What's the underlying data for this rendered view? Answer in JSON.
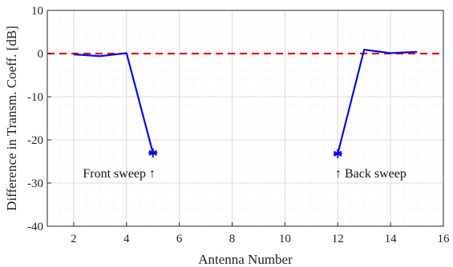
{
  "chart_data": {
    "type": "line",
    "xlabel": "Antenna Number",
    "ylabel": "Difference in Transm. Coeff. [dB]",
    "xlim": [
      1,
      16
    ],
    "ylim": [
      -40,
      10
    ],
    "xticks": [
      2,
      4,
      6,
      8,
      10,
      12,
      14,
      16
    ],
    "yticks": [
      10,
      0,
      -10,
      -20,
      -30,
      -40
    ],
    "grid": true,
    "minor_grid": true,
    "series": [
      {
        "color": "#0a0adc",
        "points": [
          [
            2,
            -0.2
          ],
          [
            3,
            -0.6
          ],
          [
            4,
            0.1
          ],
          [
            5,
            -23.0
          ]
        ],
        "marker_at_end": "asterisk"
      },
      {
        "color": "#0a0adc",
        "points": [
          [
            12,
            -23.2
          ],
          [
            13,
            0.9
          ],
          [
            14,
            0.1
          ],
          [
            15,
            0.4
          ]
        ],
        "marker_at_start": "asterisk"
      }
    ],
    "reference_line": {
      "y": 0,
      "color": "#e0141e",
      "style": "dashed"
    },
    "annotations": [
      {
        "text": "Front sweep ↑",
        "x": 5.1,
        "y": -27.8,
        "anchor": "end"
      },
      {
        "text": "↑ Back sweep",
        "x": 11.9,
        "y": -27.8,
        "anchor": "start"
      }
    ]
  }
}
